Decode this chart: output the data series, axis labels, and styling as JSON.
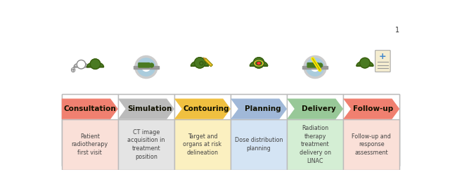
{
  "steps": [
    "Consultation",
    "Simulation",
    "Contouring",
    "Planning",
    "Delivery",
    "Follow-up"
  ],
  "descriptions": [
    "Patient\nradiotherapy\nfirst visit",
    "CT image\nacquisition in\ntreatment\nposition",
    "Target and\norgans at risk\ndelineation",
    "Dose distribution\nplanning",
    "Radiation\ntherapy\ntreatment\ndelivery on\nLINAC",
    "Follow-up and\nresponse\nassessment"
  ],
  "arrow_colors": [
    "#F08070",
    "#BBBBBB",
    "#F0C040",
    "#A0B8D8",
    "#98C898",
    "#F08070"
  ],
  "desc_bg_colors": [
    "#FAE0D8",
    "#E4E4E4",
    "#FBF0C0",
    "#D4E4F4",
    "#D4EED4",
    "#FAE0D8"
  ],
  "n": 6,
  "fig_bg": "#FFFFFF",
  "border_color": "#BBBBBB",
  "text_color": "#222222",
  "desc_text_color": "#444444",
  "green": "#4A7A22",
  "green_dark": "#3A6010",
  "gray_ring": "#CCCCCC",
  "blue_ring": "#AACCDD",
  "gray_bed": "#999999",
  "yellow_pencil": "#F0C030",
  "red_target": "#CC1111",
  "blue_clip": "#4488CC"
}
